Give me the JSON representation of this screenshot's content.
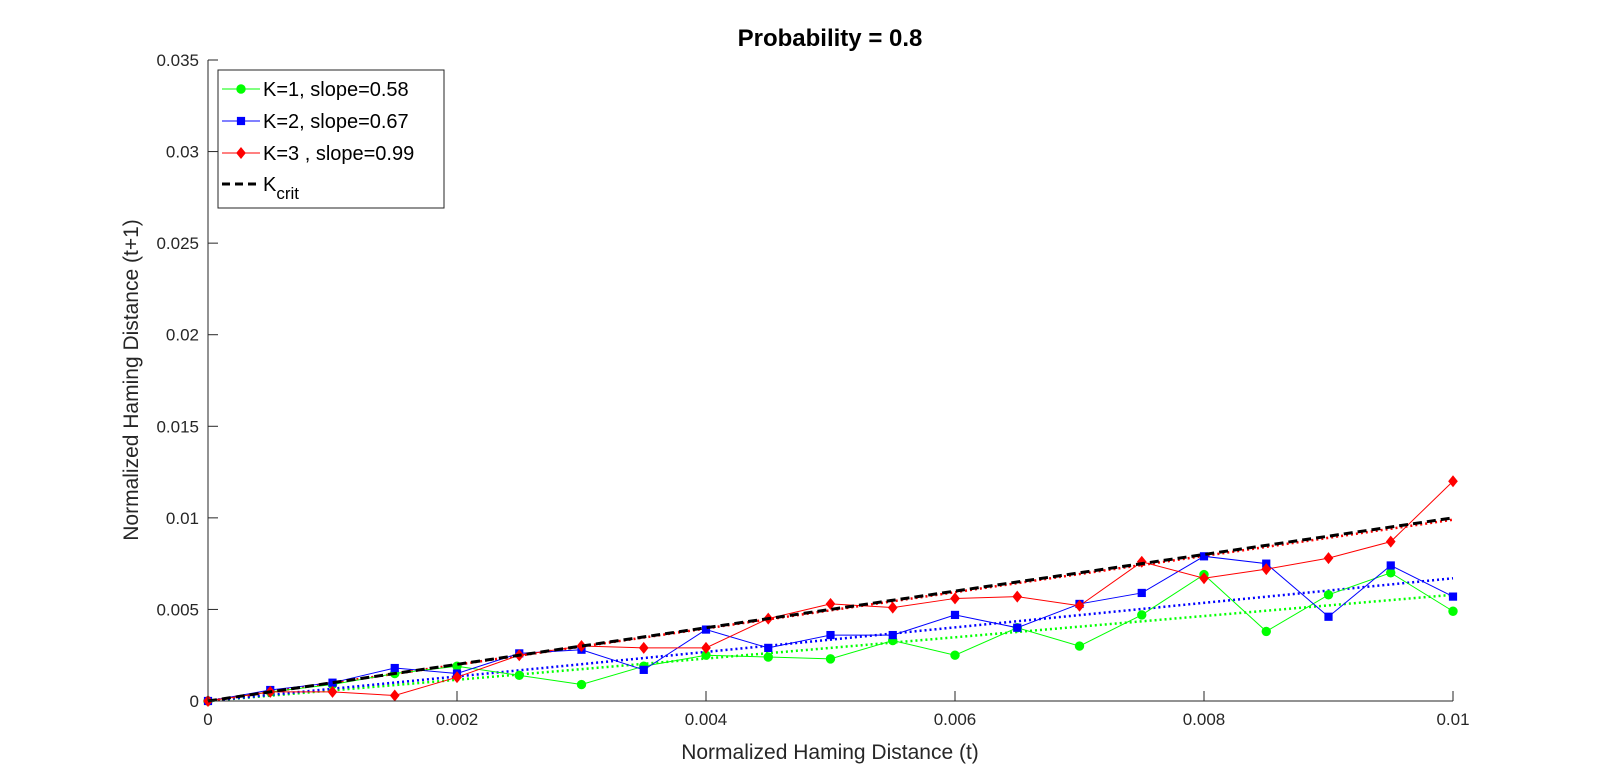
{
  "chart_data": {
    "type": "line",
    "title": "Probability = 0.8",
    "xlabel": "Normalized Haming Distance (t)",
    "ylabel": "Normalized Haming Distance (t+1)",
    "xlim": [
      0,
      0.01
    ],
    "ylim": [
      0,
      0.035
    ],
    "x_ticks": [
      "0",
      "0.002",
      "0.004",
      "0.006",
      "0.008",
      "0.01"
    ],
    "x_tick_values": [
      0,
      0.002,
      0.004,
      0.006,
      0.008,
      0.01
    ],
    "y_ticks": [
      "0",
      "0.005",
      "0.01",
      "0.015",
      "0.02",
      "0.025",
      "0.03",
      "0.035"
    ],
    "y_tick_values": [
      0,
      0.005,
      0.01,
      0.015,
      0.02,
      0.025,
      0.03,
      0.035
    ],
    "grid": false,
    "legend_position": "top-left",
    "x": [
      0,
      0.0005,
      0.001,
      0.0015,
      0.002,
      0.0025,
      0.003,
      0.0035,
      0.004,
      0.0045,
      0.005,
      0.0055,
      0.006,
      0.0065,
      0.007,
      0.0075,
      0.008,
      0.0085,
      0.009,
      0.0095,
      0.01
    ],
    "series": [
      {
        "name": "K=1, slope=0.58",
        "color": "#00ff00",
        "marker": "circle",
        "values": [
          0,
          0.0005,
          0.0009,
          0.0015,
          0.0019,
          0.0014,
          0.0009,
          0.0019,
          0.0025,
          0.0024,
          0.0023,
          0.0033,
          0.0025,
          0.004,
          0.003,
          0.0047,
          0.0069,
          0.0038,
          0.0058,
          0.007,
          0.0049
        ],
        "fit_slope": 0.58
      },
      {
        "name": "K=2, slope=0.67",
        "color": "#0000ff",
        "marker": "square",
        "values": [
          0,
          0.0006,
          0.001,
          0.0018,
          0.0015,
          0.0026,
          0.0028,
          0.0017,
          0.0039,
          0.0029,
          0.0036,
          0.0036,
          0.0047,
          0.004,
          0.0053,
          0.0059,
          0.0079,
          0.0075,
          0.0046,
          0.0074,
          0.0057
        ],
        "fit_slope": 0.67
      },
      {
        "name": "K=3 , slope=0.99",
        "color": "#ff0000",
        "marker": "diamond",
        "values": [
          0,
          0.0005,
          0.0005,
          0.0003,
          0.0013,
          0.0025,
          0.003,
          0.0029,
          0.0029,
          0.0045,
          0.0053,
          0.0051,
          0.0056,
          0.0057,
          0.0052,
          0.0076,
          0.0067,
          0.0072,
          0.0078,
          0.0087,
          0.012
        ],
        "fit_slope": 0.99
      },
      {
        "name": "K",
        "name_subscript": "crit",
        "color": "#000000",
        "style": "dashed",
        "x": [
          0,
          0.01
        ],
        "values": [
          0,
          0.01
        ]
      }
    ]
  }
}
